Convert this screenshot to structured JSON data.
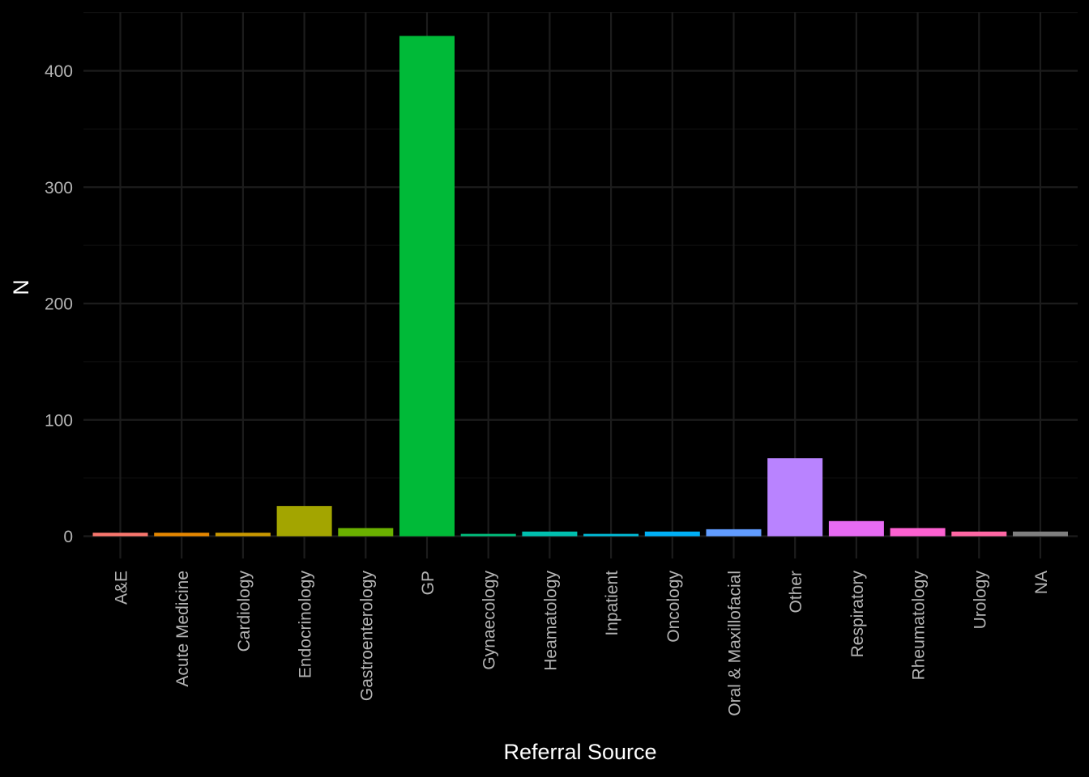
{
  "chart_data": {
    "type": "bar",
    "title": "",
    "xlabel": "Referral Source",
    "ylabel": "N",
    "categories": [
      "A&E",
      "Acute Medicine",
      "Cardiology",
      "Endocrinology",
      "Gastroenterology",
      "GP",
      "Gynaecology",
      "Heamatology",
      "Inpatient",
      "Oncology",
      "Oral & Maxillofacial",
      "Other",
      "Respiratory",
      "Rheumatology",
      "Urology",
      "NA"
    ],
    "values": [
      3,
      3,
      3,
      26,
      7,
      430,
      2,
      4,
      2,
      4,
      6,
      67,
      13,
      7,
      4,
      4
    ],
    "colors": [
      "#F8766D",
      "#E58700",
      "#C99800",
      "#A3A500",
      "#6BB100",
      "#00BA38",
      "#00BF7D",
      "#00C0AF",
      "#00BCD8",
      "#00B0F6",
      "#619CFF",
      "#B983FF",
      "#E76BF3",
      "#FD61D1",
      "#FF67A4",
      "#7F7F7F"
    ],
    "ylim": [
      0,
      450
    ],
    "yticks": [
      0,
      100,
      200,
      300,
      400
    ],
    "grid": true,
    "legend": "none",
    "background": "#000000"
  }
}
